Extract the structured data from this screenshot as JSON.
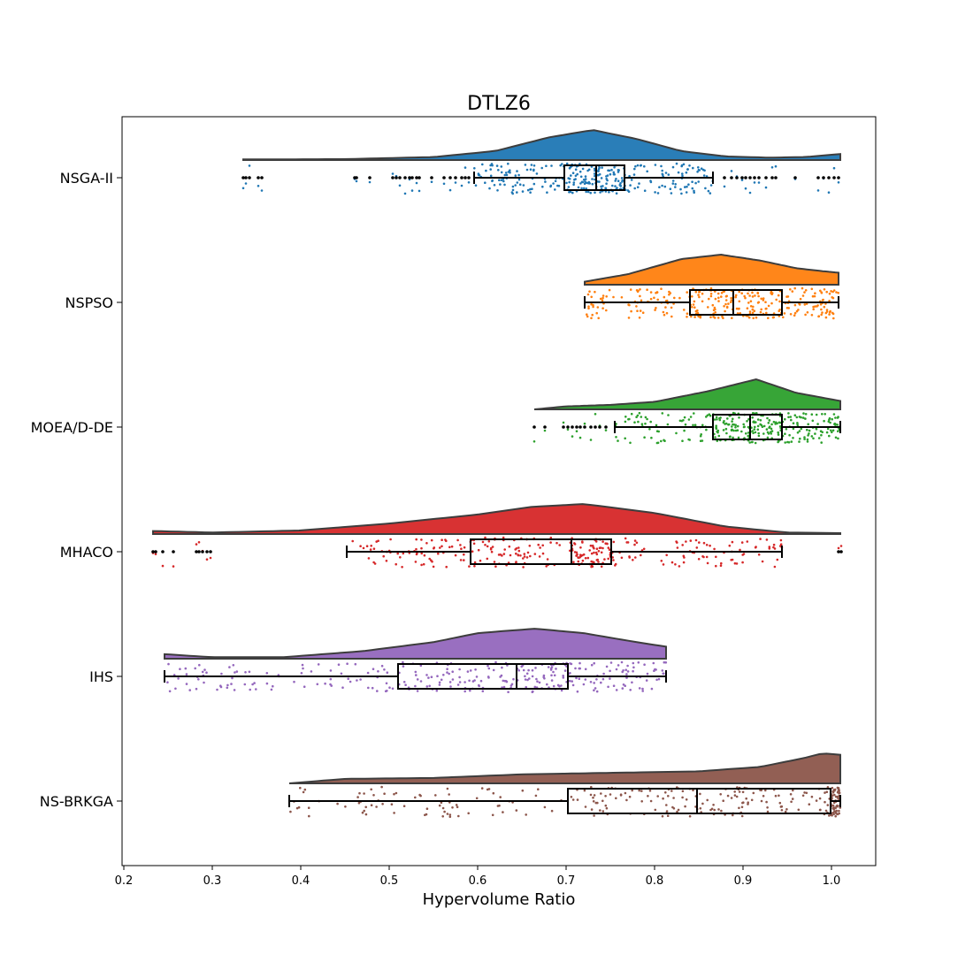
{
  "chart_data": {
    "type": "raincloud",
    "title": "DTLZ6",
    "xlabel": "Hypervolume Ratio",
    "ylabel": "",
    "xlim": [
      0.198,
      1.05
    ],
    "xticks": [
      "0.2",
      "0.3",
      "0.4",
      "0.5",
      "0.6",
      "0.7",
      "0.8",
      "0.9",
      "1.0"
    ],
    "orientation": "horizontal",
    "grid": false,
    "legend": "none",
    "series": [
      {
        "name": "NSGA-II",
        "color": "#1f77b4",
        "box": {
          "whisker_low": 0.596,
          "q1": 0.698,
          "median": 0.734,
          "q3": 0.766,
          "whisker_high": 0.866
        },
        "range": [
          0.335,
          1.01
        ],
        "outliers": [
          0.335,
          0.338,
          0.342,
          0.352,
          0.356,
          0.461,
          0.463,
          0.478,
          0.504,
          0.508,
          0.512,
          0.518,
          0.523,
          0.526,
          0.531,
          0.534,
          0.548,
          0.562,
          0.569,
          0.575,
          0.582,
          0.586,
          0.59,
          0.879,
          0.887,
          0.893,
          0.899,
          0.903,
          0.908,
          0.913,
          0.918,
          0.926,
          0.933,
          0.937,
          0.959,
          0.985,
          0.991,
          0.997,
          1.003,
          1.008
        ],
        "density": [
          [
            0.34,
            0.02
          ],
          [
            0.45,
            0.03
          ],
          [
            0.55,
            0.1
          ],
          [
            0.62,
            0.3
          ],
          [
            0.68,
            0.75
          ],
          [
            0.73,
            1.0
          ],
          [
            0.78,
            0.7
          ],
          [
            0.83,
            0.3
          ],
          [
            0.88,
            0.12
          ],
          [
            0.93,
            0.08
          ],
          [
            0.97,
            0.1
          ],
          [
            1.01,
            0.2
          ]
        ]
      },
      {
        "name": "NSPSO",
        "color": "#ff7f0e",
        "box": {
          "whisker_low": 0.721,
          "q1": 0.84,
          "median": 0.889,
          "q3": 0.944,
          "whisker_high": 1.008
        },
        "range": [
          0.721,
          1.008
        ],
        "outliers": [],
        "density": [
          [
            0.721,
            0.1
          ],
          [
            0.77,
            0.35
          ],
          [
            0.83,
            0.85
          ],
          [
            0.875,
            1.0
          ],
          [
            0.92,
            0.8
          ],
          [
            0.96,
            0.55
          ],
          [
            0.99,
            0.45
          ],
          [
            1.008,
            0.4
          ]
        ]
      },
      {
        "name": "MOEA/D-DE",
        "color": "#2ca02c",
        "box": {
          "whisker_low": 0.755,
          "q1": 0.866,
          "median": 0.908,
          "q3": 0.944,
          "whisker_high": 1.01
        },
        "range": [
          0.664,
          1.01
        ],
        "outliers": [
          0.664,
          0.676,
          0.697,
          0.702,
          0.707,
          0.712,
          0.716,
          0.721,
          0.728,
          0.733,
          0.738,
          0.745
        ],
        "density": [
          [
            0.664,
            0.0
          ],
          [
            0.7,
            0.1
          ],
          [
            0.75,
            0.15
          ],
          [
            0.8,
            0.25
          ],
          [
            0.86,
            0.6
          ],
          [
            0.915,
            1.0
          ],
          [
            0.96,
            0.55
          ],
          [
            1.01,
            0.28
          ]
        ]
      },
      {
        "name": "MHACO",
        "color": "#d62728",
        "box": {
          "whisker_low": 0.452,
          "q1": 0.592,
          "median": 0.706,
          "q3": 0.751,
          "whisker_high": 0.944
        },
        "range": [
          0.233,
          1.01
        ],
        "outliers": [
          0.233,
          0.236,
          0.244,
          0.256,
          0.282,
          0.285,
          0.289,
          0.294,
          0.298,
          1.008,
          1.011
        ],
        "density": [
          [
            0.233,
            0.1
          ],
          [
            0.3,
            0.05
          ],
          [
            0.4,
            0.12
          ],
          [
            0.5,
            0.35
          ],
          [
            0.6,
            0.65
          ],
          [
            0.66,
            0.9
          ],
          [
            0.72,
            1.0
          ],
          [
            0.8,
            0.7
          ],
          [
            0.88,
            0.25
          ],
          [
            0.95,
            0.05
          ],
          [
            1.01,
            0.03
          ]
        ]
      },
      {
        "name": "IHS",
        "color": "#9467bd",
        "box": {
          "whisker_low": 0.246,
          "q1": 0.51,
          "median": 0.644,
          "q3": 0.702,
          "whisker_high": 0.813
        },
        "range": [
          0.246,
          0.813
        ],
        "outliers": [],
        "density": [
          [
            0.246,
            0.15
          ],
          [
            0.3,
            0.05
          ],
          [
            0.38,
            0.05
          ],
          [
            0.47,
            0.25
          ],
          [
            0.55,
            0.55
          ],
          [
            0.6,
            0.85
          ],
          [
            0.665,
            1.0
          ],
          [
            0.72,
            0.85
          ],
          [
            0.78,
            0.55
          ],
          [
            0.813,
            0.4
          ]
        ]
      },
      {
        "name": "NS-BRKGA",
        "color": "#8c564b",
        "box": {
          "whisker_low": 0.387,
          "q1": 0.702,
          "median": 0.848,
          "q3": 0.999,
          "whisker_high": 1.01
        },
        "range": [
          0.387,
          1.01
        ],
        "outliers": [],
        "density": [
          [
            0.387,
            0.0
          ],
          [
            0.45,
            0.15
          ],
          [
            0.55,
            0.18
          ],
          [
            0.65,
            0.3
          ],
          [
            0.75,
            0.35
          ],
          [
            0.85,
            0.4
          ],
          [
            0.92,
            0.55
          ],
          [
            0.97,
            0.85
          ],
          [
            0.99,
            1.0
          ],
          [
            1.01,
            0.95
          ]
        ]
      }
    ]
  }
}
